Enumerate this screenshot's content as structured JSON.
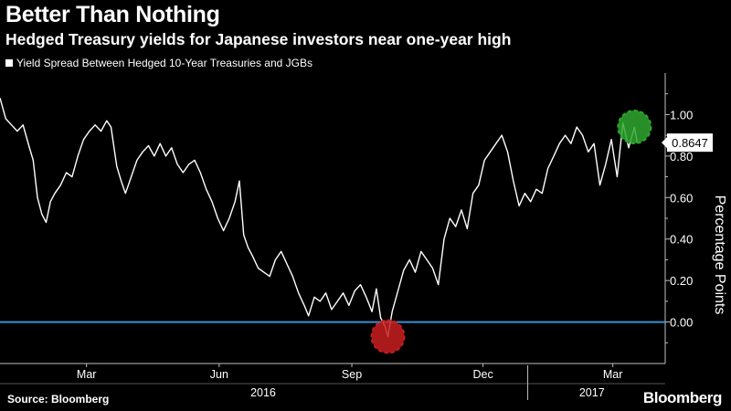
{
  "header": {
    "title": "Better Than Nothing",
    "subtitle": "Hedged Treasury yields for Japanese investors near one-year high"
  },
  "footer": {
    "source": "Source: Bloomberg",
    "brand": "Bloomberg"
  },
  "colors": {
    "background": "#000000",
    "line": "#ffffff",
    "zero_line": "#3a8fd6",
    "low_marker": "#c81e1e",
    "high_marker": "#2fa82f",
    "axis": "#bfbfbf"
  },
  "chart_data": {
    "type": "line",
    "ylabel": "Percentage Points",
    "ylim": [
      -0.2,
      1.2
    ],
    "yticks": [
      0.0,
      0.2,
      0.4,
      0.6,
      0.8,
      1.0
    ],
    "ytick_labels": [
      "0.00",
      "0.20",
      "0.40",
      "0.60",
      "0.80",
      "1.00"
    ],
    "xlim": [
      "2016-01-01",
      "2017-03-31"
    ],
    "month_ticks": [
      {
        "date": "2016-03-01",
        "label": "Mar"
      },
      {
        "date": "2016-06-01",
        "label": "Jun"
      },
      {
        "date": "2016-09-01",
        "label": "Sep"
      },
      {
        "date": "2016-12-01",
        "label": "Dec"
      },
      {
        "date": "2017-03-01",
        "label": "Mar"
      }
    ],
    "year_ticks": [
      {
        "label": "2016",
        "from": "2016-01-01",
        "to": "2016-12-31"
      },
      {
        "label": "2017",
        "from": "2017-01-01",
        "to": "2017-03-31"
      }
    ],
    "legend_position": "top-left",
    "reference_line": 0.0,
    "last_value_label": "0.8647",
    "series": [
      {
        "name": "Yield Spread Between Hedged 10-Year Treasuries and JGBs",
        "points": [
          [
            "2016-01-01",
            1.08
          ],
          [
            "2016-01-05",
            0.98
          ],
          [
            "2016-01-09",
            0.95
          ],
          [
            "2016-01-13",
            0.92
          ],
          [
            "2016-01-17",
            0.95
          ],
          [
            "2016-01-21",
            0.85
          ],
          [
            "2016-01-24",
            0.78
          ],
          [
            "2016-01-27",
            0.6
          ],
          [
            "2016-01-30",
            0.52
          ],
          [
            "2016-02-02",
            0.48
          ],
          [
            "2016-02-05",
            0.58
          ],
          [
            "2016-02-08",
            0.62
          ],
          [
            "2016-02-12",
            0.66
          ],
          [
            "2016-02-16",
            0.72
          ],
          [
            "2016-02-20",
            0.7
          ],
          [
            "2016-02-24",
            0.8
          ],
          [
            "2016-02-28",
            0.88
          ],
          [
            "2016-03-03",
            0.92
          ],
          [
            "2016-03-07",
            0.95
          ],
          [
            "2016-03-11",
            0.92
          ],
          [
            "2016-03-15",
            0.97
          ],
          [
            "2016-03-18",
            0.94
          ],
          [
            "2016-03-22",
            0.75
          ],
          [
            "2016-03-25",
            0.68
          ],
          [
            "2016-03-28",
            0.62
          ],
          [
            "2016-04-01",
            0.7
          ],
          [
            "2016-04-05",
            0.78
          ],
          [
            "2016-04-09",
            0.82
          ],
          [
            "2016-04-13",
            0.85
          ],
          [
            "2016-04-17",
            0.8
          ],
          [
            "2016-04-21",
            0.86
          ],
          [
            "2016-04-25",
            0.8
          ],
          [
            "2016-04-29",
            0.84
          ],
          [
            "2016-05-03",
            0.76
          ],
          [
            "2016-05-07",
            0.72
          ],
          [
            "2016-05-11",
            0.76
          ],
          [
            "2016-05-15",
            0.78
          ],
          [
            "2016-05-19",
            0.72
          ],
          [
            "2016-05-23",
            0.64
          ],
          [
            "2016-05-27",
            0.58
          ],
          [
            "2016-05-31",
            0.5
          ],
          [
            "2016-06-04",
            0.44
          ],
          [
            "2016-06-08",
            0.5
          ],
          [
            "2016-06-12",
            0.58
          ],
          [
            "2016-06-15",
            0.68
          ],
          [
            "2016-06-18",
            0.42
          ],
          [
            "2016-06-21",
            0.36
          ],
          [
            "2016-06-24",
            0.32
          ],
          [
            "2016-06-28",
            0.26
          ],
          [
            "2016-07-02",
            0.24
          ],
          [
            "2016-07-06",
            0.22
          ],
          [
            "2016-07-10",
            0.3
          ],
          [
            "2016-07-14",
            0.34
          ],
          [
            "2016-07-18",
            0.28
          ],
          [
            "2016-07-22",
            0.22
          ],
          [
            "2016-07-26",
            0.14
          ],
          [
            "2016-07-30",
            0.08
          ],
          [
            "2016-08-02",
            0.03
          ],
          [
            "2016-08-06",
            0.12
          ],
          [
            "2016-08-10",
            0.1
          ],
          [
            "2016-08-14",
            0.14
          ],
          [
            "2016-08-18",
            0.06
          ],
          [
            "2016-08-22",
            0.1
          ],
          [
            "2016-08-26",
            0.14
          ],
          [
            "2016-08-30",
            0.08
          ],
          [
            "2016-09-03",
            0.15
          ],
          [
            "2016-09-07",
            0.18
          ],
          [
            "2016-09-11",
            0.12
          ],
          [
            "2016-09-15",
            0.05
          ],
          [
            "2016-09-18",
            0.16
          ],
          [
            "2016-09-21",
            0.02
          ],
          [
            "2016-09-24",
            -0.02
          ],
          [
            "2016-09-26",
            -0.07
          ],
          [
            "2016-09-29",
            0.05
          ],
          [
            "2016-10-03",
            0.15
          ],
          [
            "2016-10-07",
            0.25
          ],
          [
            "2016-10-11",
            0.3
          ],
          [
            "2016-10-15",
            0.24
          ],
          [
            "2016-10-19",
            0.34
          ],
          [
            "2016-10-23",
            0.3
          ],
          [
            "2016-10-27",
            0.26
          ],
          [
            "2016-10-31",
            0.18
          ],
          [
            "2016-11-04",
            0.4
          ],
          [
            "2016-11-08",
            0.5
          ],
          [
            "2016-11-12",
            0.46
          ],
          [
            "2016-11-16",
            0.54
          ],
          [
            "2016-11-20",
            0.45
          ],
          [
            "2016-11-24",
            0.62
          ],
          [
            "2016-11-28",
            0.66
          ],
          [
            "2016-12-02",
            0.78
          ],
          [
            "2016-12-06",
            0.82
          ],
          [
            "2016-12-10",
            0.86
          ],
          [
            "2016-12-14",
            0.9
          ],
          [
            "2016-12-18",
            0.82
          ],
          [
            "2016-12-22",
            0.68
          ],
          [
            "2016-12-26",
            0.56
          ],
          [
            "2016-12-30",
            0.62
          ],
          [
            "2017-01-03",
            0.58
          ],
          [
            "2017-01-07",
            0.64
          ],
          [
            "2017-01-11",
            0.62
          ],
          [
            "2017-01-15",
            0.74
          ],
          [
            "2017-01-19",
            0.8
          ],
          [
            "2017-01-23",
            0.86
          ],
          [
            "2017-01-27",
            0.9
          ],
          [
            "2017-01-31",
            0.86
          ],
          [
            "2017-02-04",
            0.94
          ],
          [
            "2017-02-08",
            0.9
          ],
          [
            "2017-02-12",
            0.82
          ],
          [
            "2017-02-16",
            0.86
          ],
          [
            "2017-02-20",
            0.66
          ],
          [
            "2017-02-24",
            0.76
          ],
          [
            "2017-02-28",
            0.88
          ],
          [
            "2017-03-04",
            0.7
          ],
          [
            "2017-03-08",
            0.96
          ],
          [
            "2017-03-12",
            0.84
          ],
          [
            "2017-03-16",
            0.94
          ],
          [
            "2017-03-18",
            0.8647
          ]
        ]
      }
    ],
    "markers": [
      {
        "name": "low",
        "date": "2016-09-26",
        "value": -0.07
      },
      {
        "name": "high",
        "date": "2017-03-16",
        "value": 0.94
      }
    ]
  }
}
